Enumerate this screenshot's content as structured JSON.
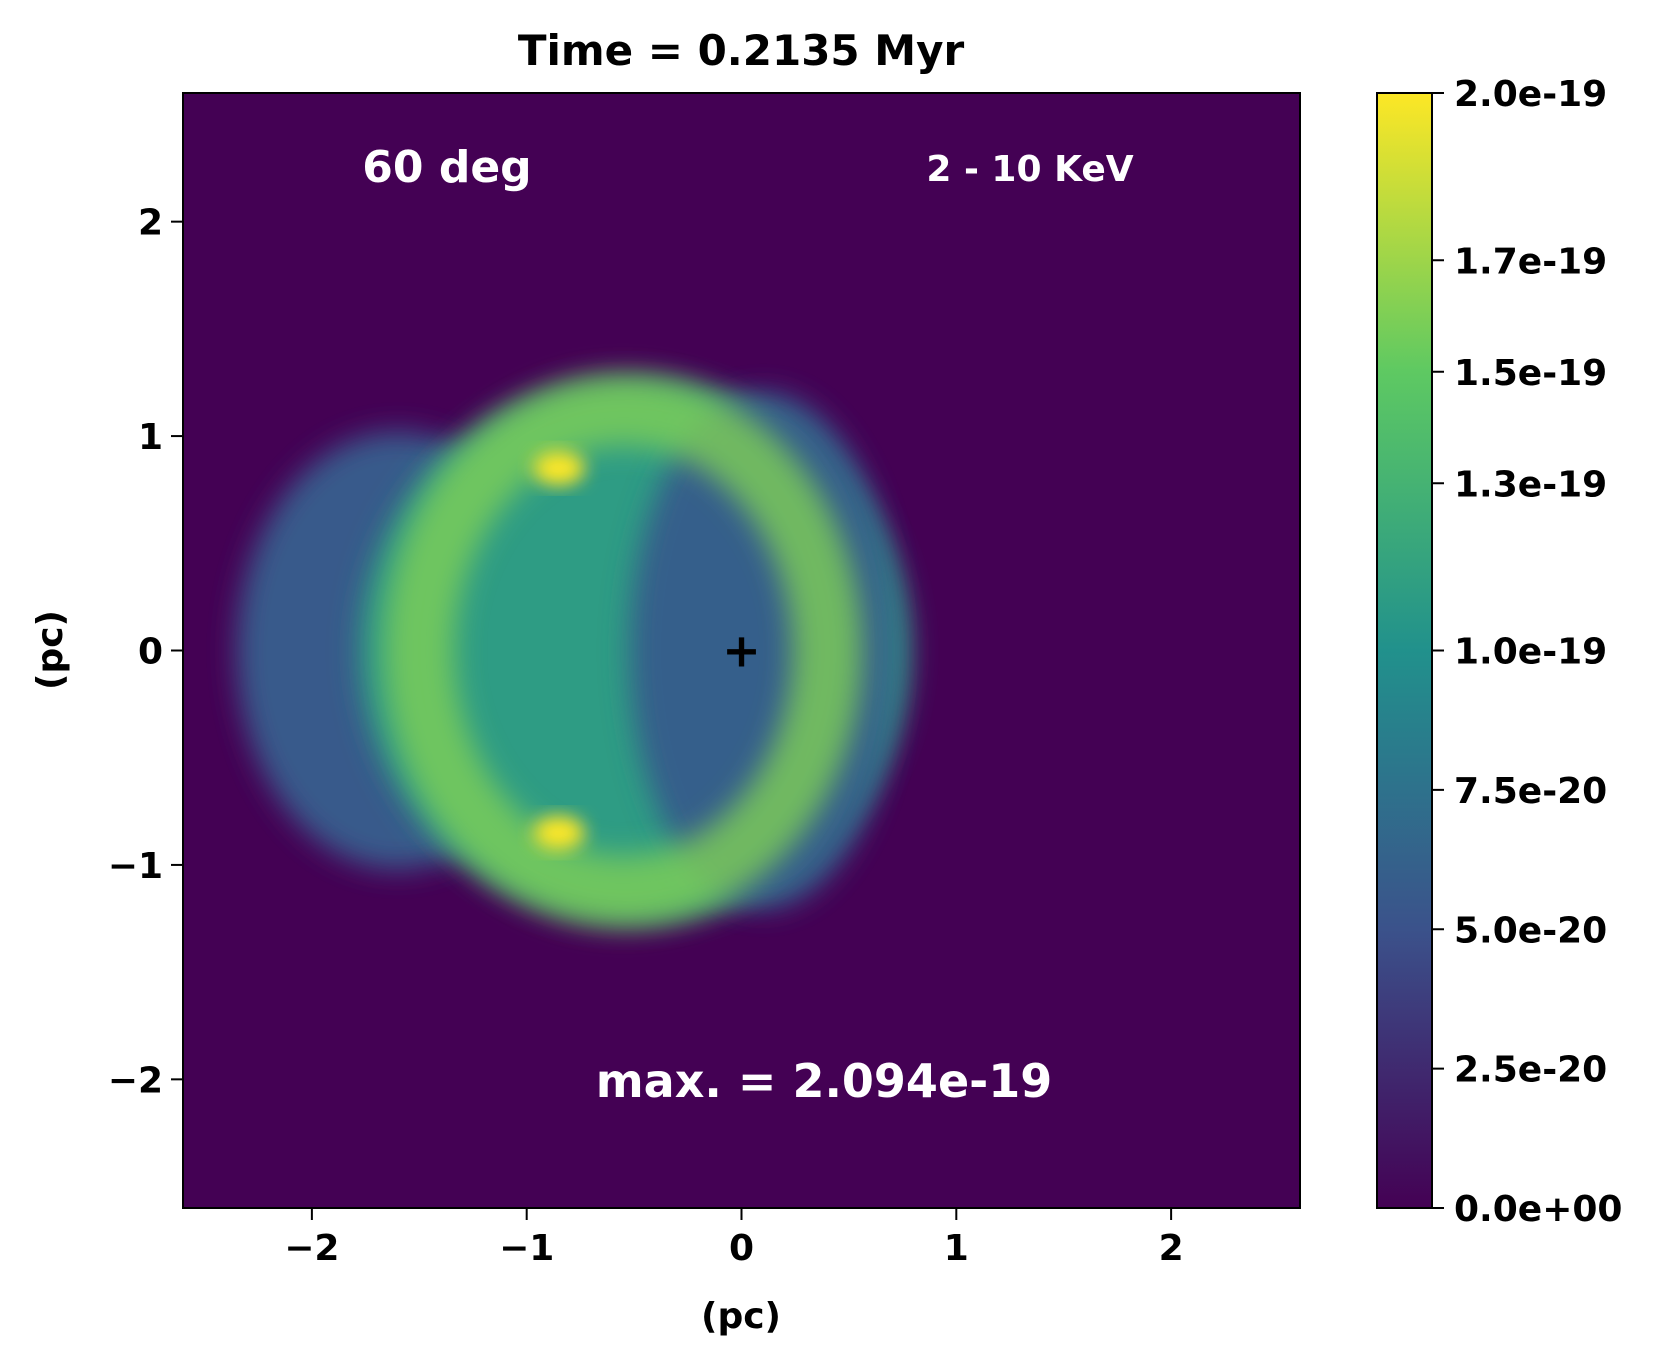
{
  "chart_data": {
    "type": "heatmap",
    "title": "Time = 0.2135 Myr",
    "xlabel": "(pc)",
    "ylabel": "(pc)",
    "xlim": [
      -2.6,
      2.6
    ],
    "ylim": [
      -2.6,
      2.6
    ],
    "x_ticks": [
      -2,
      -1,
      0,
      1,
      2
    ],
    "y_ticks": [
      -2,
      -1,
      0,
      1,
      2
    ],
    "x_tick_labels": [
      "−2",
      "−1",
      "0",
      "1",
      "2"
    ],
    "y_tick_labels": [
      "−2",
      "−1",
      "0",
      "1",
      "2"
    ],
    "annotations": {
      "angle": "60 deg",
      "band": "2 - 10 KeV",
      "maximum": "max. = 2.094e-19"
    },
    "center_marker": {
      "x": 0,
      "y": 0,
      "symbol": "+"
    },
    "colorbar": {
      "colormap": "viridis",
      "range": [
        0,
        2e-19
      ],
      "ticks": [
        0,
        2.5e-20,
        5e-20,
        7.5e-20,
        1e-19,
        1.3e-19,
        1.5e-19,
        1.7e-19,
        2e-19
      ],
      "tick_labels": [
        "0.0e+00",
        "2.5e-20",
        "5.0e-20",
        "7.5e-20",
        "1.0e-19",
        "1.3e-19",
        "1.5e-19",
        "1.7e-19",
        "2.0e-19"
      ],
      "stops": [
        "#440154",
        "#3b528b",
        "#21918c",
        "#5ec962",
        "#fde725"
      ]
    },
    "background_color": "#440154",
    "emission_components": [
      {
        "shape": "ellipse",
        "cx": -1.6,
        "cy": 0,
        "rx": 0.75,
        "ry": 1.02,
        "level": 0.28
      },
      {
        "shape": "ellipse",
        "cx": -0.5,
        "cy": 0,
        "rx": 1.28,
        "ry": 1.26,
        "level": 0.55
      },
      {
        "shape": "ellipse",
        "cx": 0.1,
        "cy": 0,
        "rx": 0.62,
        "ry": 1.2,
        "level": 0.3
      },
      {
        "shape": "ring",
        "cx": -0.55,
        "cy": 0,
        "rx": 0.95,
        "ry": 1.12,
        "level": 0.8
      },
      {
        "shape": "ellipse",
        "cx": -0.85,
        "cy": 0.85,
        "rx": 0.12,
        "ry": 0.08,
        "level": 1.0
      },
      {
        "shape": "ellipse",
        "cx": -0.85,
        "cy": -0.85,
        "rx": 0.12,
        "ry": 0.08,
        "level": 1.0
      }
    ]
  }
}
